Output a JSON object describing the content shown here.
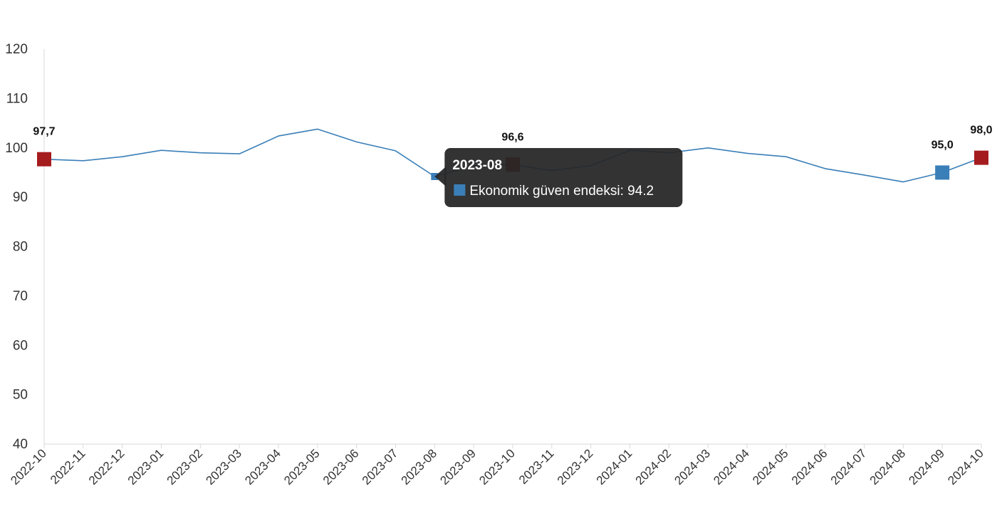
{
  "chart_data": {
    "type": "line",
    "title": "",
    "xlabel": "",
    "ylabel": "",
    "ylim": [
      40,
      120
    ],
    "yticks": [
      40,
      50,
      60,
      70,
      80,
      90,
      100,
      110,
      120
    ],
    "grid": false,
    "categories": [
      "2022-10",
      "2022-11",
      "2022-12",
      "2023-01",
      "2023-02",
      "2023-03",
      "2023-04",
      "2023-05",
      "2023-06",
      "2023-07",
      "2023-08",
      "2023-09",
      "2023-10",
      "2023-11",
      "2023-12",
      "2024-01",
      "2024-02",
      "2024-03",
      "2024-04",
      "2024-05",
      "2024-06",
      "2024-07",
      "2024-08",
      "2024-09",
      "2024-10"
    ],
    "series": [
      {
        "name": "Ekonomik güven endeksi",
        "color": "#3a7fb8",
        "values": [
          97.7,
          97.4,
          98.2,
          99.5,
          99.0,
          98.8,
          102.4,
          103.8,
          101.2,
          99.4,
          94.2,
          96.4,
          96.6,
          95.4,
          96.4,
          99.5,
          99.0,
          100.0,
          98.9,
          98.2,
          95.8,
          94.5,
          93.1,
          95.0,
          98.0
        ]
      }
    ],
    "highlighted_points": [
      {
        "category": "2022-10",
        "label": "97,7",
        "color": "#a51c1e"
      },
      {
        "category": "2023-10",
        "label": "96,6",
        "color": "#a51c1e"
      },
      {
        "category": "2024-09",
        "label": "95,0",
        "color": "#3a7fb8"
      },
      {
        "category": "2024-10",
        "label": "98,0",
        "color": "#a51c1e"
      }
    ],
    "tooltip": {
      "category": "2023-08",
      "title": "2023-08",
      "text": "Ekonomik güven endeksi: 94.2",
      "swatch_color": "#3a7fb8"
    }
  }
}
